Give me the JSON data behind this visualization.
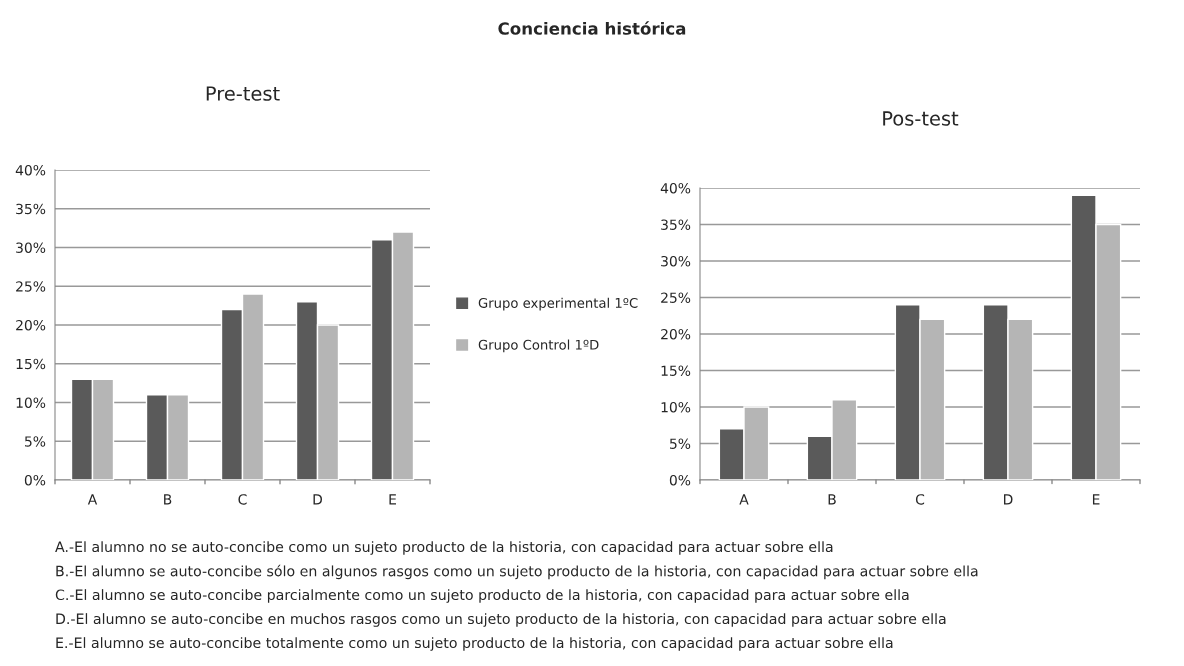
{
  "chart_data": [
    {
      "type": "bar",
      "title": "Pre-test",
      "categories": [
        "A",
        "B",
        "C",
        "D",
        "E"
      ],
      "series": [
        {
          "name": "Grupo experimental 1ºC",
          "color": "#5a5a5a",
          "values": [
            13,
            11,
            22,
            23,
            31
          ]
        },
        {
          "name": "Grupo Control 1ºD",
          "color": "#b5b5b5",
          "values": [
            13,
            11,
            24,
            20,
            32
          ]
        }
      ],
      "ylim": [
        0,
        40
      ],
      "yticks": [
        {
          "value": 0,
          "label": "0%"
        },
        {
          "value": 5,
          "label": "5%"
        },
        {
          "value": 10,
          "label": "10%"
        },
        {
          "value": 15,
          "label": "15%"
        },
        {
          "value": 20,
          "label": "20%"
        },
        {
          "value": 25,
          "label": "25%"
        },
        {
          "value": 30,
          "label": "30%"
        },
        {
          "value": 35,
          "label": "35%"
        },
        {
          "value": 40,
          "label": "40%"
        }
      ],
      "grid": "y",
      "legend": "right",
      "annotations": [
        "Conciencia histórica",
        "A.-El alumno no se auto-concibe como un sujeto producto de la historia, con capacidad para actuar sobre ella",
        "B.-El alumno se auto-concibe sólo en algunos rasgos como un sujeto producto de la historia, con capacidad para actuar sobre ella",
        "C.-El alumno se auto-concibe parcialmente como un sujeto producto de la historia, con capacidad para actuar sobre ella",
        "D.-El alumno se auto-concibe en muchos rasgos como un sujeto producto de la historia, con capacidad para actuar sobre ella",
        "E.-El alumno se auto-concibe totalmente como un sujeto producto de la historia, con capacidad para actuar sobre ella"
      ]
    },
    {
      "type": "bar",
      "title": "Pos-test",
      "categories": [
        "A",
        "B",
        "C",
        "D",
        "E"
      ],
      "series": [
        {
          "color": "#5a5a5a",
          "values": [
            7,
            6,
            24,
            24,
            39
          ]
        },
        {
          "color": "#b5b5b5",
          "values": [
            10,
            11,
            22,
            22,
            35
          ]
        }
      ],
      "ylim": [
        0,
        40
      ],
      "yticks": [
        {
          "value": 0,
          "label": "0%"
        },
        {
          "value": 5,
          "label": "5%"
        },
        {
          "value": 10,
          "label": "10%"
        },
        {
          "value": 15,
          "label": "15%"
        },
        {
          "value": 20,
          "label": "20%"
        },
        {
          "value": 25,
          "label": "25%"
        },
        {
          "value": 30,
          "label": "30%"
        },
        {
          "value": 35,
          "label": "35%"
        },
        {
          "value": 40,
          "label": "40%"
        }
      ],
      "grid": "y"
    }
  ]
}
